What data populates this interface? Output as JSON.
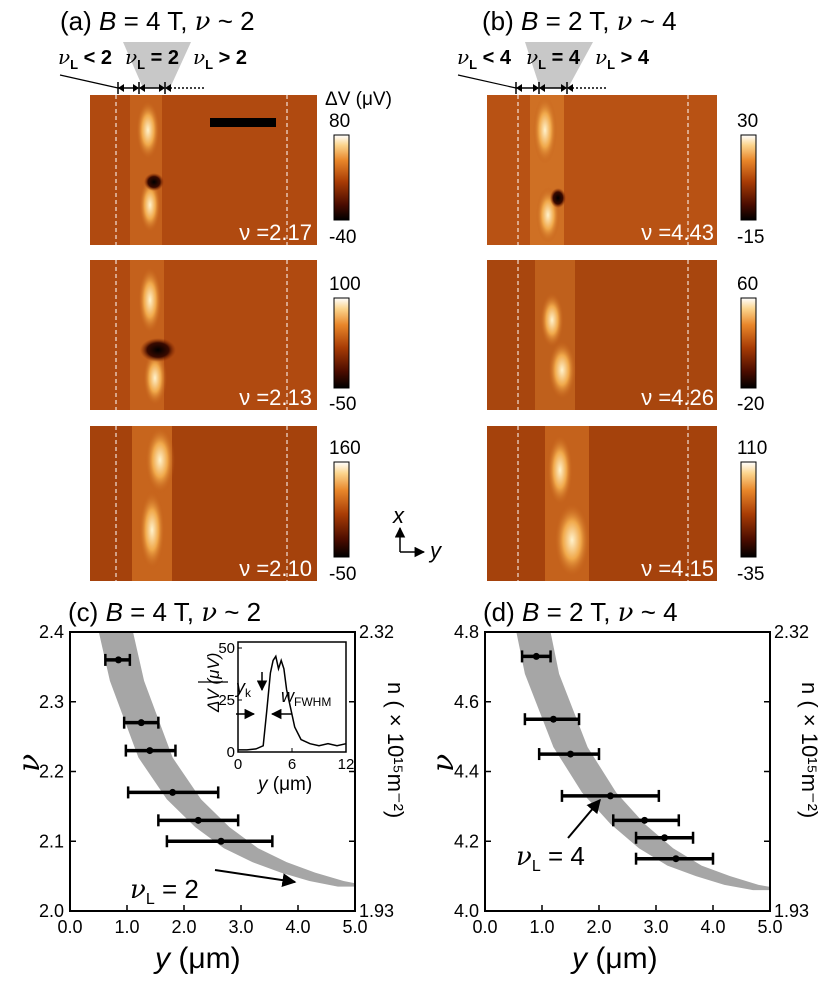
{
  "panel_a": {
    "title_prefix": "(a)",
    "title_var": "B",
    "title_rest": " = 4 T,",
    "title_nu": "ν",
    "title_tail": " ~ 2",
    "labels": {
      "left": "ν<sub>L</sub> < 2",
      "mid": "ν<sub>L</sub> = 2",
      "right": "ν<sub>L</sub> > 2"
    },
    "label_parts": {
      "nu": "ν",
      "sub": "L",
      "lt": " < 2",
      "eq": " = 2",
      "gt": " > 2"
    },
    "colorbar_title": "ΔV (μV)",
    "maps": [
      {
        "nu_label": "ν =2.17",
        "cbar_max": "80",
        "cbar_min": "-40"
      },
      {
        "nu_label": "ν =2.13",
        "cbar_max": "100",
        "cbar_min": "-50"
      },
      {
        "nu_label": "ν =2.10",
        "cbar_max": "160",
        "cbar_min": "-50"
      }
    ]
  },
  "panel_b": {
    "title_prefix": "(b)",
    "title_var": "B",
    "title_rest": " = 2 T,",
    "title_nu": "ν",
    "title_tail": " ~ 4",
    "label_parts": {
      "nu": "ν",
      "sub": "L",
      "lt": " < 4",
      "eq": " = 4",
      "gt": " > 4"
    },
    "maps": [
      {
        "nu_label": "ν =4.43",
        "cbar_max": "30",
        "cbar_min": "-15"
      },
      {
        "nu_label": "ν =4.26",
        "cbar_max": "60",
        "cbar_min": "-20"
      },
      {
        "nu_label": "ν =4.15",
        "cbar_max": "110",
        "cbar_min": "-35"
      }
    ]
  },
  "axes_icon": {
    "x": "x",
    "y": "y"
  },
  "chart_data": [
    {
      "type": "scatter",
      "panel": "(c)",
      "title_prefix": "(c)",
      "title_var": "B",
      "title_rest": " = 4 T,",
      "title_nu": "ν",
      "title_tail": " ~ 2",
      "xlabel": "y (μm)",
      "ylabel": "ν",
      "y2label": "n ( × 10¹⁵m⁻²)",
      "xlim": [
        0.0,
        5.0
      ],
      "ylim": [
        2.0,
        2.4
      ],
      "xticks": [
        "0.0",
        "1.0",
        "2.0",
        "3.0",
        "4.0",
        "5.0"
      ],
      "yticks": [
        "2.0",
        "2.1",
        "2.2",
        "2.3",
        "2.4"
      ],
      "y2ticks": [
        "1.93",
        "2.32"
      ],
      "points": [
        {
          "nu": 2.36,
          "y": 0.85,
          "xerr_low": 0.62,
          "xerr_high": 1.05
        },
        {
          "nu": 2.27,
          "y": 1.25,
          "xerr_low": 0.95,
          "xerr_high": 1.55
        },
        {
          "nu": 2.23,
          "y": 1.4,
          "xerr_low": 0.98,
          "xerr_high": 1.85
        },
        {
          "nu": 2.17,
          "y": 1.8,
          "xerr_low": 1.02,
          "xerr_high": 2.6
        },
        {
          "nu": 2.13,
          "y": 2.25,
          "xerr_low": 1.55,
          "xerr_high": 2.95
        },
        {
          "nu": 2.1,
          "y": 2.65,
          "xerr_low": 1.7,
          "xerr_high": 3.55
        }
      ],
      "band": {
        "label": "νL = 2",
        "label_nu": "ν",
        "label_sub": "L",
        "label_rest": " = 2",
        "center": [
          [
            0.75,
            2.42
          ],
          [
            1.0,
            2.33
          ],
          [
            1.5,
            2.22
          ],
          [
            2.0,
            2.16
          ],
          [
            2.5,
            2.12
          ],
          [
            3.0,
            2.09
          ],
          [
            3.5,
            2.07
          ],
          [
            4.0,
            2.055
          ],
          [
            4.5,
            2.043
          ],
          [
            5.0,
            2.035
          ]
        ],
        "half_width_y": 0.3
      },
      "inset": {
        "xlabel": "y (μm)",
        "ylabel": "ΔV (μV)",
        "xlim": [
          0,
          12
        ],
        "ylim": [
          0,
          50
        ],
        "xticks": [
          "0",
          "6",
          "12"
        ],
        "yticks": [
          "0",
          "25",
          "50"
        ],
        "annot_yk": "yk",
        "annot_yk_sub": "k",
        "annot_yk_main": "y",
        "annot_w": "wFWHM",
        "annot_w_main": "w",
        "annot_w_sub": "FWHM",
        "profile": [
          [
            0,
            1
          ],
          [
            1,
            1
          ],
          [
            2,
            1.5
          ],
          [
            2.8,
            3
          ],
          [
            3.2,
            20
          ],
          [
            3.6,
            38
          ],
          [
            3.9,
            44
          ],
          [
            4.2,
            46
          ],
          [
            4.5,
            40
          ],
          [
            4.8,
            44
          ],
          [
            5.1,
            40
          ],
          [
            5.4,
            30
          ],
          [
            5.8,
            22
          ],
          [
            6.3,
            12
          ],
          [
            7,
            6
          ],
          [
            8,
            4
          ],
          [
            9,
            3
          ],
          [
            10,
            4
          ],
          [
            11,
            3
          ],
          [
            12,
            4
          ]
        ]
      }
    },
    {
      "type": "scatter",
      "panel": "(d)",
      "title_prefix": "(d)",
      "title_var": "B",
      "title_rest": " = 2 T,",
      "title_nu": "ν",
      "title_tail": " ~ 4",
      "xlabel": "y (μm)",
      "ylabel": "ν",
      "y2label": "n ( × 10¹⁵m⁻²)",
      "xlim": [
        0.0,
        5.0
      ],
      "ylim": [
        4.0,
        4.8
      ],
      "xticks": [
        "0.0",
        "1.0",
        "2.0",
        "3.0",
        "4.0",
        "5.0"
      ],
      "yticks": [
        "4.0",
        "4.2",
        "4.4",
        "4.6",
        "4.8"
      ],
      "y2ticks": [
        "1.93",
        "2.32"
      ],
      "points": [
        {
          "nu": 4.73,
          "y": 0.9,
          "xerr_low": 0.65,
          "xerr_high": 1.15
        },
        {
          "nu": 4.55,
          "y": 1.2,
          "xerr_low": 0.7,
          "xerr_high": 1.65
        },
        {
          "nu": 4.45,
          "y": 1.5,
          "xerr_low": 0.95,
          "xerr_high": 2.0
        },
        {
          "nu": 4.33,
          "y": 2.2,
          "xerr_low": 1.35,
          "xerr_high": 3.05
        },
        {
          "nu": 4.26,
          "y": 2.8,
          "xerr_low": 2.25,
          "xerr_high": 3.4
        },
        {
          "nu": 4.21,
          "y": 3.15,
          "xerr_low": 2.65,
          "xerr_high": 3.65
        },
        {
          "nu": 4.15,
          "y": 3.35,
          "xerr_low": 2.65,
          "xerr_high": 4.0
        }
      ],
      "band": {
        "label": "νL = 4",
        "label_nu": "ν",
        "label_sub": "L",
        "label_rest": " = 4",
        "center": [
          [
            0.8,
            4.84
          ],
          [
            1.0,
            4.68
          ],
          [
            1.5,
            4.47
          ],
          [
            2.0,
            4.34
          ],
          [
            2.5,
            4.25
          ],
          [
            3.0,
            4.18
          ],
          [
            3.5,
            4.13
          ],
          [
            4.0,
            4.1
          ],
          [
            4.5,
            4.075
          ],
          [
            5.0,
            4.06
          ]
        ],
        "half_width_y": 0.3
      }
    }
  ]
}
